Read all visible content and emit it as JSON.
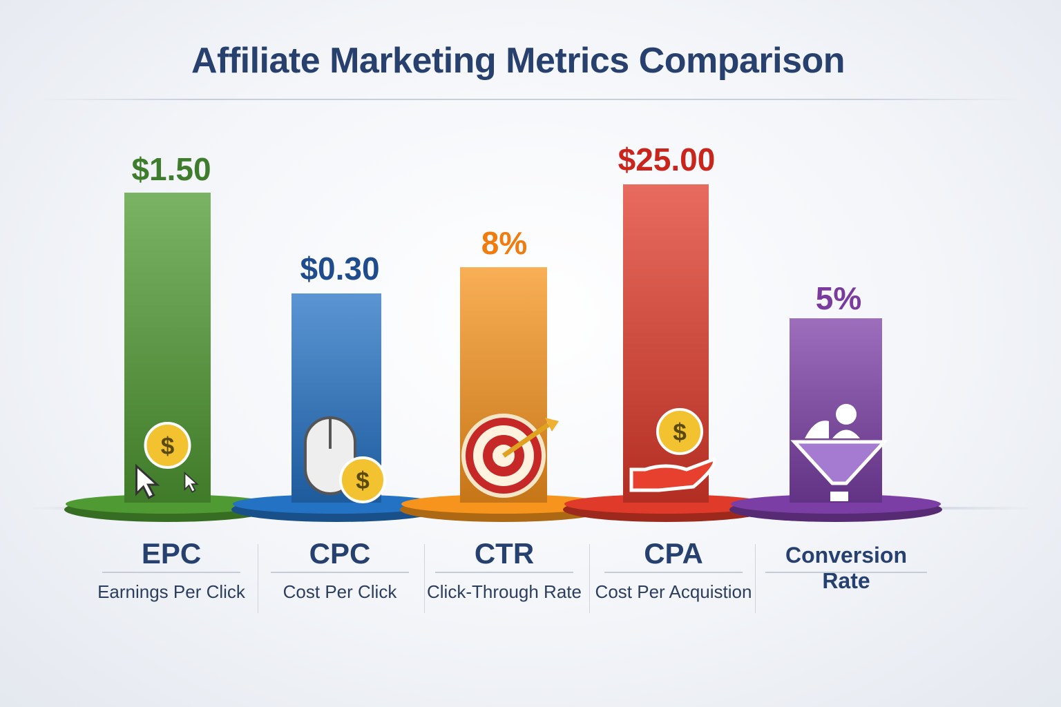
{
  "chart_data": {
    "type": "bar",
    "title": "Affiliate Marketing Metrics Comparison",
    "categories": [
      "EPC",
      "CPC",
      "CTR",
      "CPA",
      "Conversion Rate"
    ],
    "descriptions": [
      "Earnings Per Click",
      "Cost Per Click",
      "Click-Through Rate",
      "Cost Per Acquistion",
      ""
    ],
    "values": [
      1.5,
      0.3,
      8,
      25.0,
      5
    ],
    "units": [
      "$",
      "$",
      "%",
      "$",
      "%"
    ],
    "value_labels": [
      "$1.50",
      "$0.30",
      "8%",
      "$25.00",
      "5%"
    ],
    "colors": [
      "#4f9a32",
      "#2472c4",
      "#f7941d",
      "#e03a2a",
      "#7b3ea5"
    ],
    "label_colors": [
      "#3e7d2c",
      "#1f4c8c",
      "#f07c0f",
      "#c9251c",
      "#7a3a9e"
    ],
    "icons": [
      "dollar-cursor-icon",
      "mouse-dollar-icon",
      "target-arrow-icon",
      "hand-dollar-icon",
      "funnel-user-icon"
    ],
    "grid": false,
    "legend": "none"
  }
}
